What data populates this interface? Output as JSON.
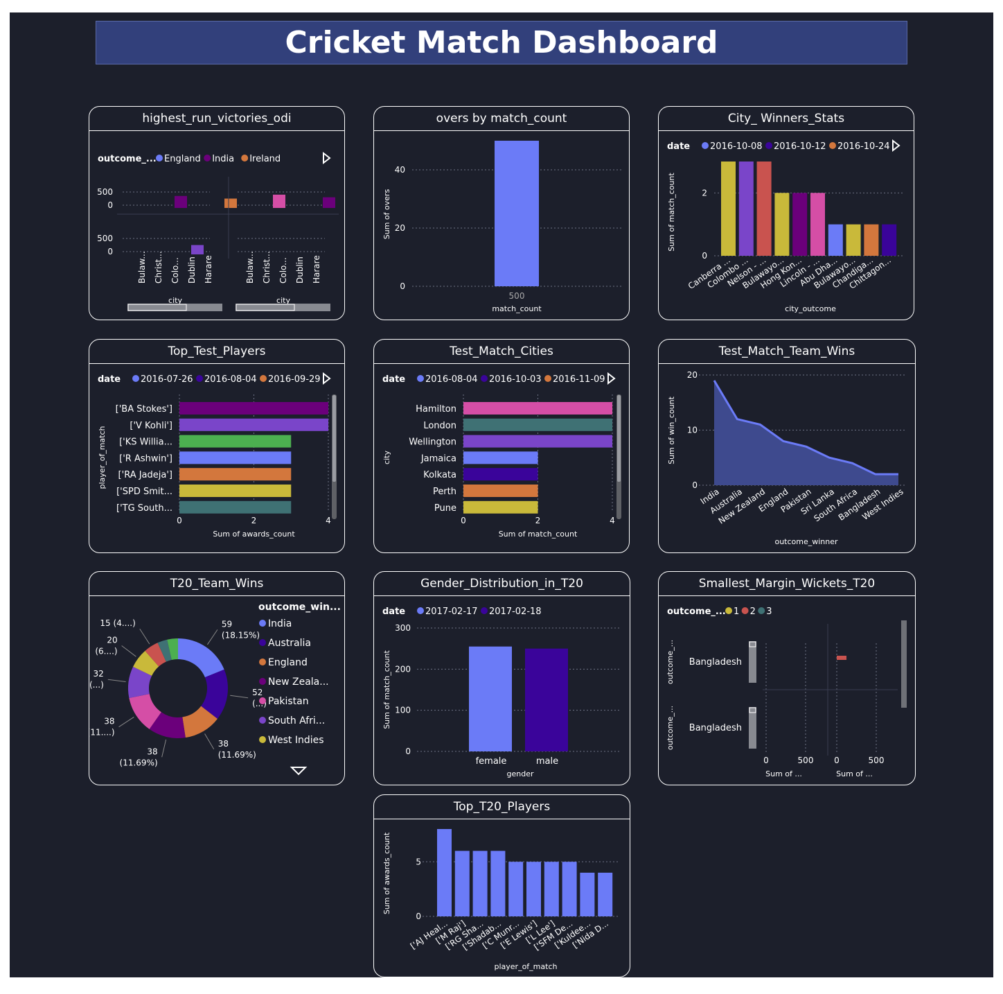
{
  "page": {
    "title": "Cricket Match Dashboard"
  },
  "colors": {
    "background": "#1c1f2b",
    "title_bar": "#32407b",
    "text": "#ffffff",
    "grid": "#6e7386",
    "palette": [
      "#6b7bf7",
      "#3a049a",
      "#d3773d",
      "#6b007b",
      "#d54ea6",
      "#7a45c9",
      "#c9b93a",
      "#3f7174",
      "#c9534f",
      "#4caf50",
      "#c83e8e"
    ]
  },
  "cards": {
    "c1": {
      "title": "highest_run_victories_odi"
    },
    "c2": {
      "title": "overs by match_count"
    },
    "c3": {
      "title": "City_ Winners_Stats"
    },
    "c4": {
      "title": "Top_Test_Players"
    },
    "c5": {
      "title": "Test_Match_Cities"
    },
    "c6": {
      "title": "Test_Match_Team_Wins"
    },
    "c7": {
      "title": "T20_Team_Wins"
    },
    "c8": {
      "title": "Gender_Distribution_in_T20"
    },
    "c9": {
      "title": "Smallest_Margin_Wickets_T20"
    },
    "c10": {
      "title": "Top_T20_Players"
    }
  },
  "chart_data": [
    {
      "id": "c1",
      "type": "bar",
      "legend_title": "outcome_...",
      "legend": [
        {
          "name": "England",
          "color": "#6b7bf7"
        },
        {
          "name": "India",
          "color": "#6b007b"
        },
        {
          "name": "Ireland",
          "color": "#d3773d"
        }
      ],
      "xlabel": "city",
      "categories": [
        "Bulaw...",
        "Christ...",
        "Colo...",
        "Dublin",
        "Harare"
      ],
      "y_ticks": [
        "500",
        "0"
      ],
      "panels": [
        {
          "bars": [
            {
              "cat": 1,
              "value": 350,
              "color": "#6b007b"
            },
            {
              "cat": 4,
              "value": 250,
              "color": "#d3773d"
            }
          ]
        },
        {
          "bars": [
            {
              "cat": 0,
              "value": 400,
              "color": "#d54ea6"
            },
            {
              "cat": 3,
              "value": 300,
              "color": "#6b007b"
            }
          ]
        },
        {
          "bars": [
            {
              "cat": 2,
              "value": 250,
              "color": "#7a45c9"
            }
          ]
        },
        {
          "bars": []
        }
      ]
    },
    {
      "id": "c2",
      "type": "bar",
      "xlabel": "match_count",
      "ylabel": "Sum of overs",
      "categories": [
        "500"
      ],
      "values": [
        50
      ],
      "y_ticks": [
        0,
        20,
        40
      ],
      "ylim": [
        0,
        50
      ],
      "color": "#6b7bf7"
    },
    {
      "id": "c3",
      "type": "bar",
      "legend_title": "date",
      "legend": [
        {
          "name": "2016-10-08",
          "color": "#6b7bf7"
        },
        {
          "name": "2016-10-12",
          "color": "#3a049a"
        },
        {
          "name": "2016-10-24",
          "color": "#d3773d"
        }
      ],
      "xlabel": "city_outcome",
      "ylabel": "Sum of match_count",
      "y_ticks": [
        0,
        2
      ],
      "ylim": [
        0,
        3
      ],
      "categories": [
        "Canberra ...",
        "Colombo ...",
        "Nelson - ...",
        "Bulawayo...",
        "Hong Kon...",
        "Lincoln - ...",
        "Abu Dha...",
        "Bulawayo...",
        "Chandiga...",
        "Chittagon..."
      ],
      "bars": [
        {
          "cat": 0,
          "value": 3,
          "color": "#c9b93a"
        },
        {
          "cat": 1,
          "value": 3,
          "color": "#7a45c9"
        },
        {
          "cat": 2,
          "value": 3,
          "color": "#c9534f"
        },
        {
          "cat": 3,
          "value": 2,
          "color": "#c9b93a"
        },
        {
          "cat": 4,
          "value": 2,
          "color": "#6b007b"
        },
        {
          "cat": 5,
          "value": 2,
          "color": "#d54ea6"
        },
        {
          "cat": 6,
          "value": 1,
          "color": "#6b7bf7"
        },
        {
          "cat": 7,
          "value": 1,
          "color": "#c9b93a"
        },
        {
          "cat": 8,
          "value": 1,
          "color": "#d3773d"
        },
        {
          "cat": 9,
          "value": 1,
          "color": "#3a049a"
        }
      ]
    },
    {
      "id": "c4",
      "type": "bar",
      "orientation": "horizontal",
      "legend_title": "date",
      "legend": [
        {
          "name": "2016-07-26",
          "color": "#6b7bf7"
        },
        {
          "name": "2016-08-04",
          "color": "#3a049a"
        },
        {
          "name": "2016-09-29",
          "color": "#d3773d"
        }
      ],
      "xlabel": "Sum of awards_count",
      "ylabel": "player_of_match",
      "x_ticks": [
        0,
        2,
        4
      ],
      "xlim": [
        0,
        4
      ],
      "categories": [
        "['BA Stokes']",
        "['V Kohli']",
        "['KS Willia...",
        "['R Ashwin']",
        "['RA Jadeja']",
        "['SPD Smit...",
        "['TG South..."
      ],
      "values": [
        4,
        4,
        3,
        3,
        3,
        3,
        3
      ],
      "colors": [
        "#6b007b",
        "#7a45c9",
        "#4caf50",
        "#6b7bf7",
        "#d3773d",
        "#c9b93a",
        "#3f7174"
      ]
    },
    {
      "id": "c5",
      "type": "bar",
      "orientation": "horizontal",
      "legend_title": "date",
      "legend": [
        {
          "name": "2016-08-04",
          "color": "#6b7bf7"
        },
        {
          "name": "2016-10-03",
          "color": "#3a049a"
        },
        {
          "name": "2016-11-09",
          "color": "#d3773d"
        }
      ],
      "xlabel": "Sum of match_count",
      "ylabel": "city",
      "x_ticks": [
        0,
        2,
        4
      ],
      "xlim": [
        0,
        4
      ],
      "categories": [
        "Hamilton",
        "London",
        "Wellington",
        "Jamaica",
        "Kolkata",
        "Perth",
        "Pune"
      ],
      "values": [
        4,
        4,
        4,
        2,
        2,
        2,
        2
      ],
      "colors": [
        "#d54ea6",
        "#3f7174",
        "#7a45c9",
        "#6b7bf7",
        "#3a049a",
        "#d3773d",
        "#c9b93a"
      ]
    },
    {
      "id": "c6",
      "type": "area",
      "xlabel": "outcome_winner",
      "ylabel": "Sum of win_count",
      "y_ticks": [
        0,
        10,
        20
      ],
      "ylim": [
        0,
        20
      ],
      "categories": [
        "India",
        "Australia",
        "New Zealand",
        "England",
        "Pakistan",
        "Sri Lanka",
        "South Africa",
        "Bangladesh",
        "West Indies"
      ],
      "values": [
        19,
        12,
        11,
        8,
        7,
        5,
        4,
        2,
        2
      ],
      "color": "#6b7bf7"
    },
    {
      "id": "c7",
      "type": "pie",
      "legend_title": "outcome_win...",
      "legend": [
        {
          "name": "India",
          "color": "#6b7bf7"
        },
        {
          "name": "Australia",
          "color": "#3a049a"
        },
        {
          "name": "England",
          "color": "#d3773d"
        },
        {
          "name": "New Zeala...",
          "color": "#6b007b"
        },
        {
          "name": "Pakistan",
          "color": "#d54ea6"
        },
        {
          "name": "South Afri...",
          "color": "#7a45c9"
        },
        {
          "name": "West Indies",
          "color": "#c9b93a"
        }
      ],
      "slices": [
        {
          "value": 59,
          "color": "#6b7bf7"
        },
        {
          "value": 52,
          "color": "#3a049a"
        },
        {
          "value": 38,
          "color": "#d3773d"
        },
        {
          "value": 38,
          "color": "#6b007b"
        },
        {
          "value": 38,
          "color": "#d54ea6"
        },
        {
          "value": 32,
          "color": "#7a45c9"
        },
        {
          "value": 20,
          "color": "#c9b93a"
        },
        {
          "value": 15,
          "color": "#c9534f"
        },
        {
          "value": 10,
          "color": "#3f7174"
        },
        {
          "value": 11,
          "color": "#4caf50"
        }
      ],
      "labels": [
        {
          "l1": "59",
          "l2": "(18.15%)"
        },
        {
          "l1": "52",
          "l2": "(...)"
        },
        {
          "l1": "38",
          "l2": "(11.69%)"
        },
        {
          "l1": "38",
          "l2": "(11.69%)"
        },
        {
          "l1": "38",
          "l2": "(11....)"
        },
        {
          "l1": "32",
          "l2": "(...)"
        },
        {
          "l1": "20",
          "l2": "(6....)"
        },
        {
          "l1": "15 (4....)",
          "l2": ""
        }
      ]
    },
    {
      "id": "c8",
      "type": "bar",
      "legend_title": "date",
      "legend": [
        {
          "name": "2017-02-17",
          "color": "#6b7bf7"
        },
        {
          "name": "2017-02-18",
          "color": "#3a049a"
        }
      ],
      "xlabel": "gender",
      "ylabel": "Sum of match_count",
      "y_ticks": [
        0,
        100,
        200,
        300
      ],
      "ylim": [
        0,
        300
      ],
      "categories": [
        "female",
        "male"
      ],
      "values": [
        255,
        250
      ],
      "colors": [
        "#6b7bf7",
        "#3a049a"
      ]
    },
    {
      "id": "c9",
      "type": "bar",
      "orientation": "horizontal",
      "legend_title": "outcome_...",
      "legend": [
        {
          "name": "1",
          "color": "#c9b93a"
        },
        {
          "name": "2",
          "color": "#c9534f"
        },
        {
          "name": "3",
          "color": "#3f7174"
        }
      ],
      "ylabel": "outcome_...",
      "xlabel": "Sum of ...",
      "x_ticks": [
        "0",
        "500"
      ],
      "categories": [
        "Bangladesh",
        "Bangladesh"
      ],
      "bars": [
        {
          "row": 0,
          "panel": 1,
          "value": 120,
          "color": "#c9534f"
        }
      ]
    },
    {
      "id": "c10",
      "type": "bar",
      "xlabel": "player_of_match",
      "ylabel": "Sum of awards_count",
      "y_ticks": [
        0,
        5
      ],
      "ylim": [
        0,
        8
      ],
      "categories": [
        "['AJ Heal...",
        "['M Raj']",
        "['RG Sha...",
        "['Shadab...",
        "['C Munr...",
        "['E Lewis']",
        "['L Lee']",
        "['SFM De...",
        "['Kuldee...",
        "['Nida D..."
      ],
      "values": [
        8,
        6,
        6,
        6,
        5,
        5,
        5,
        5,
        4,
        4
      ],
      "color": "#6b7bf7"
    }
  ]
}
